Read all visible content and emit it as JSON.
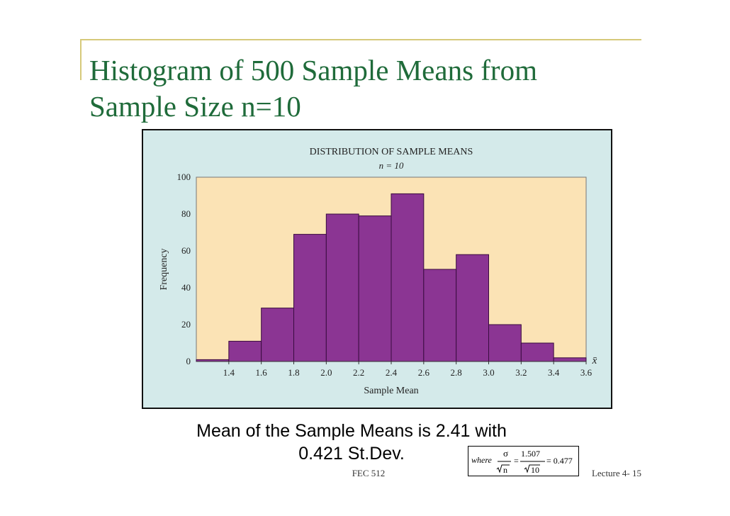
{
  "slide": {
    "title": "Histogram of 500 Sample Means from Sample Size n=10",
    "caption_line1": "Mean of the Sample Means is 2.41 with",
    "caption_line2": "0.421 St.Dev.",
    "footer_center": "FEC 512",
    "footer_right": "Lecture 4- 15"
  },
  "formula": {
    "where": "where",
    "sigma": "σ",
    "n": "n",
    "equals": "=",
    "numerator": "1.507",
    "denominator": "10",
    "result": "= 0.477"
  },
  "colors": {
    "title": "#1f6b3a",
    "outer_panel": "#d4eaea",
    "plot_bg": "#fbe3b5",
    "bar_fill": "#8b3593",
    "frame_line": "#d6c97a"
  },
  "chart_data": {
    "type": "bar",
    "title": "DISTRIBUTION OF SAMPLE MEANS",
    "subtitle": "n = 10",
    "xlabel": "Sample Mean",
    "x_symbol": "x̄",
    "ylabel": "Frequency",
    "bin_edges": [
      1.2,
      1.4,
      1.6,
      1.8,
      2.0,
      2.2,
      2.4,
      2.6,
      2.8,
      3.0,
      3.2,
      3.4,
      3.6
    ],
    "values": [
      1,
      11,
      29,
      69,
      80,
      79,
      91,
      50,
      58,
      20,
      10,
      2
    ],
    "xticks": [
      "1.4",
      "1.6",
      "1.8",
      "2.0",
      "2.2",
      "2.4",
      "2.6",
      "2.8",
      "3.0",
      "3.2",
      "3.4",
      "3.6"
    ],
    "yticks": [
      "0",
      "20",
      "40",
      "60",
      "80",
      "100"
    ],
    "ylim": [
      0,
      100
    ],
    "xlim": [
      1.2,
      3.6
    ],
    "grid": false
  }
}
